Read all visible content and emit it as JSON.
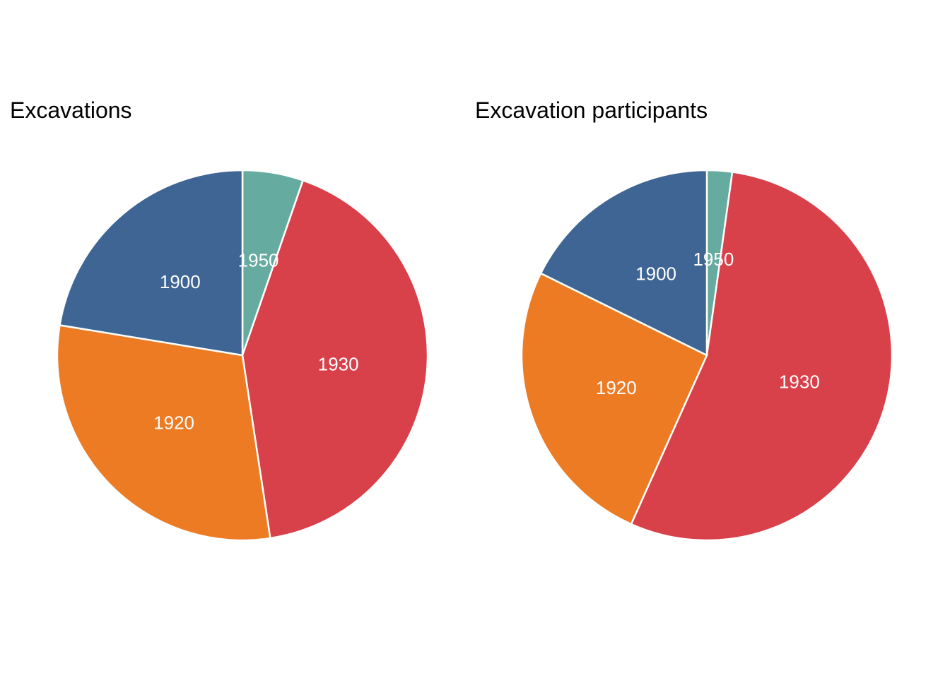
{
  "chart_data": [
    {
      "type": "pie",
      "title": "Excavations",
      "start": "12 o'clock",
      "direction": "clockwise",
      "slices": [
        {
          "label": "1950",
          "value": 5.3,
          "color": "#66ab9f"
        },
        {
          "label": "1930",
          "value": 42.3,
          "color": "#d8404a"
        },
        {
          "label": "1920",
          "value": 30.0,
          "color": "#ec7b24"
        },
        {
          "label": "1900",
          "value": 22.4,
          "color": "#3f6594"
        }
      ]
    },
    {
      "type": "pie",
      "title": "Excavation participants",
      "start": "12 o'clock",
      "direction": "clockwise",
      "slices": [
        {
          "label": "1950",
          "value": 2.2,
          "color": "#66ab9f"
        },
        {
          "label": "1930",
          "value": 54.5,
          "color": "#d8404a"
        },
        {
          "label": "1920",
          "value": 25.6,
          "color": "#ec7b24"
        },
        {
          "label": "1900",
          "value": 17.7,
          "color": "#3f6594"
        }
      ]
    }
  ]
}
